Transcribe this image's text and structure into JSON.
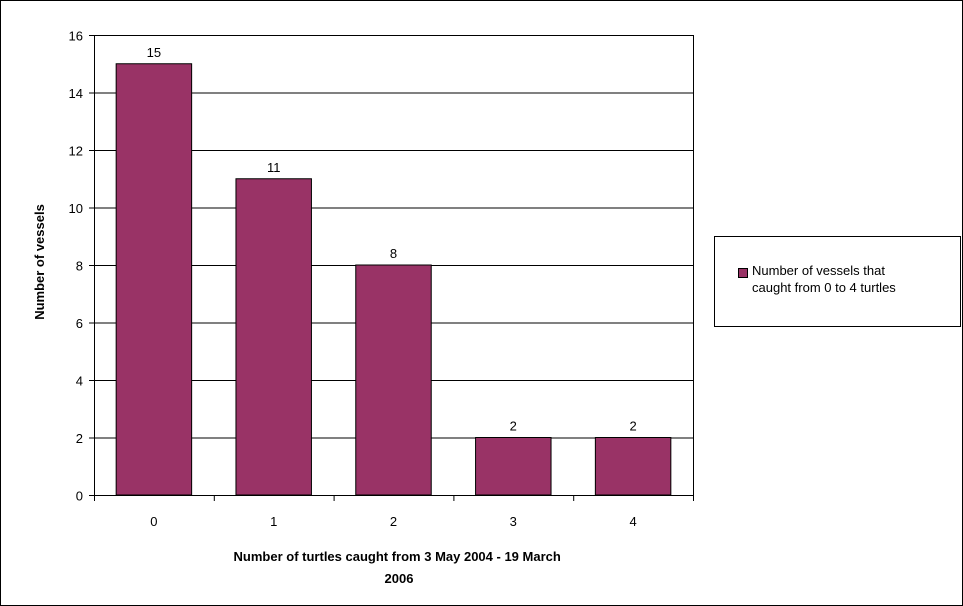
{
  "chart_data": {
    "type": "bar",
    "categories": [
      "0",
      "1",
      "2",
      "3",
      "4"
    ],
    "series": [
      {
        "name": "Number of vessels that\ncaught from 0 to 4 turtles",
        "values": [
          15,
          11,
          8,
          2,
          2
        ],
        "color": "#993366"
      }
    ],
    "data_labels": [
      "15",
      "11",
      "8",
      "2",
      "2"
    ],
    "xlabel_lines": [
      "Number of turtles caught from 3 May 2004 - 19 March",
      "2006"
    ],
    "ylabel": "Number of vessels",
    "ylim": [
      0,
      16
    ],
    "yticks": [
      "0",
      "2",
      "4",
      "6",
      "8",
      "10",
      "12",
      "14",
      "16"
    ],
    "grid": true,
    "legend_position": "right"
  }
}
